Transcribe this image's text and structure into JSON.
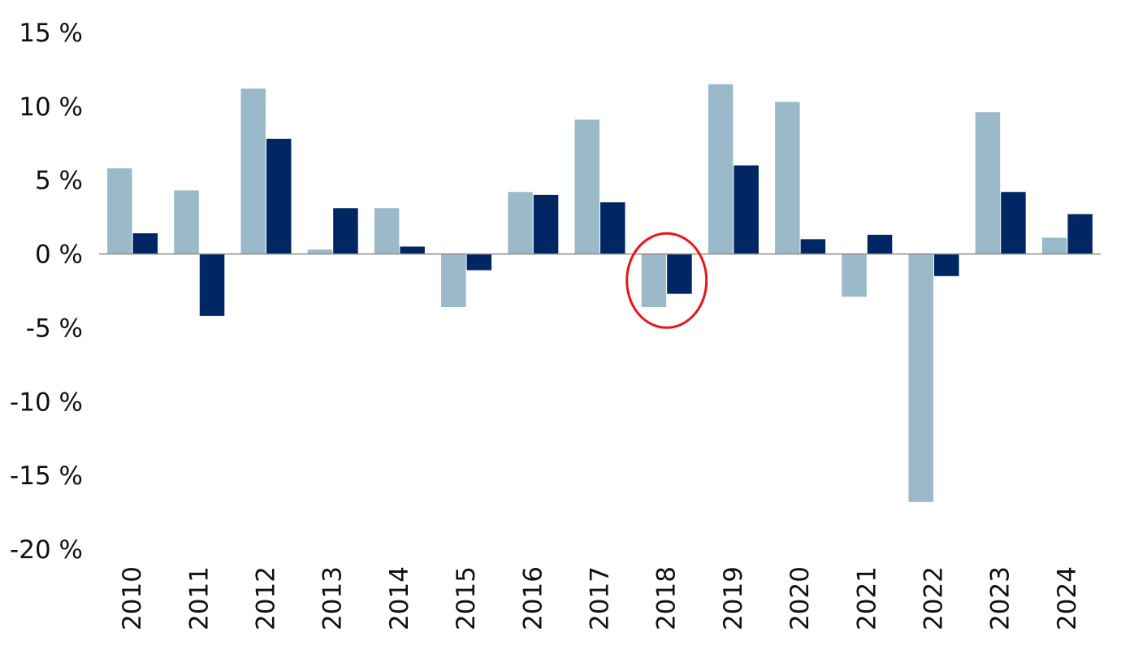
{
  "chart_data": {
    "type": "bar",
    "categories": [
      "2010",
      "2011",
      "2012",
      "2013",
      "2014",
      "2015",
      "2016",
      "2017",
      "2018",
      "2019",
      "2020",
      "2021",
      "2022",
      "2023",
      "2024"
    ],
    "series": [
      {
        "color": "#9bbac9",
        "values": [
          5.8,
          4.3,
          11.2,
          0.3,
          3.1,
          -3.6,
          4.2,
          9.1,
          -3.6,
          11.5,
          10.3,
          -2.9,
          -16.8,
          9.6,
          1.1
        ]
      },
      {
        "color": "#002664",
        "values": [
          1.4,
          -4.2,
          7.8,
          3.1,
          0.5,
          -1.1,
          4.0,
          3.5,
          -2.7,
          6.0,
          1.0,
          1.3,
          -1.5,
          4.2,
          2.7
        ]
      }
    ],
    "title": "",
    "xlabel": "",
    "ylabel": "",
    "ylim": [
      -20,
      15
    ],
    "yticks": [
      "15 %",
      "10 %",
      "5 %",
      "0 %",
      "-5 %",
      "-10 %",
      "-15 %",
      "-20 %"
    ],
    "ytick_values": [
      15,
      10,
      5,
      0,
      -5,
      -10,
      -15,
      -20
    ],
    "grid": false,
    "legend": "none",
    "highlight": {
      "category": "2018",
      "shape": "ellipse",
      "color": "#e8161c"
    }
  }
}
